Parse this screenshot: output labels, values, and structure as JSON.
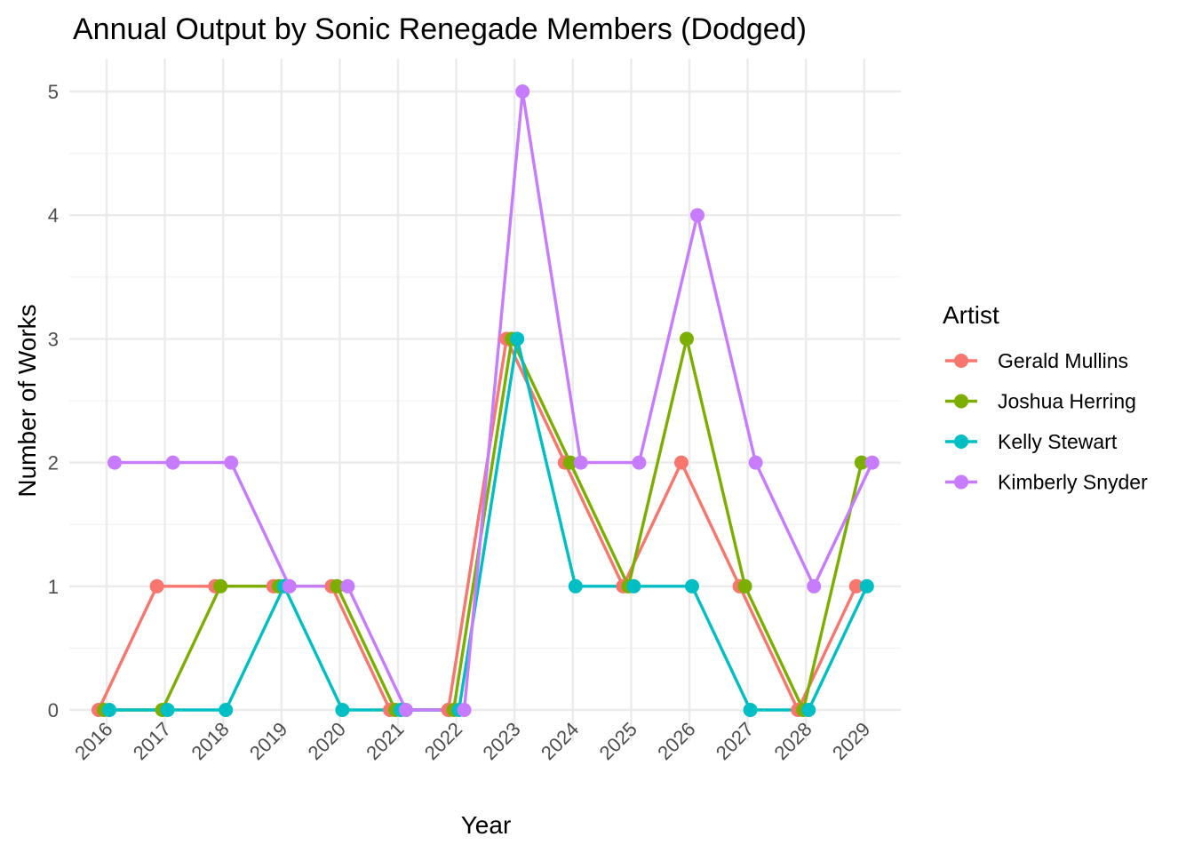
{
  "chart_data": {
    "type": "line",
    "title": "Annual Output by Sonic Renegade Members (Dodged)",
    "xlabel": "Year",
    "ylabel": "Number of Works",
    "x": [
      "2016",
      "2017",
      "2018",
      "2019",
      "2020",
      "2021",
      "2022",
      "2023",
      "2024",
      "2025",
      "2026",
      "2027",
      "2028",
      "2029"
    ],
    "ylim": [
      -0.25,
      5.25
    ],
    "yticks": [
      0,
      1,
      2,
      3,
      4,
      5
    ],
    "grid": true,
    "legend": {
      "title": "Artist",
      "placement": "right"
    },
    "series": [
      {
        "name": "Gerald Mullins",
        "color": "#F8766D",
        "values": [
          0,
          1,
          1,
          1,
          1,
          0,
          0,
          3,
          2,
          1,
          2,
          1,
          0,
          1
        ]
      },
      {
        "name": "Joshua Herring",
        "color": "#7CAE00",
        "values": [
          0,
          0,
          1,
          1,
          1,
          0,
          0,
          3,
          2,
          1,
          3,
          1,
          0,
          2
        ]
      },
      {
        "name": "Kelly Stewart",
        "color": "#00BFC4",
        "values": [
          0,
          0,
          0,
          1,
          0,
          0,
          0,
          3,
          1,
          1,
          1,
          0,
          0,
          1
        ]
      },
      {
        "name": "Kimberly Snyder",
        "color": "#C77CFF",
        "values": [
          2,
          2,
          2,
          1,
          1,
          0,
          0,
          5,
          2,
          2,
          4,
          2,
          1,
          2
        ]
      }
    ]
  }
}
